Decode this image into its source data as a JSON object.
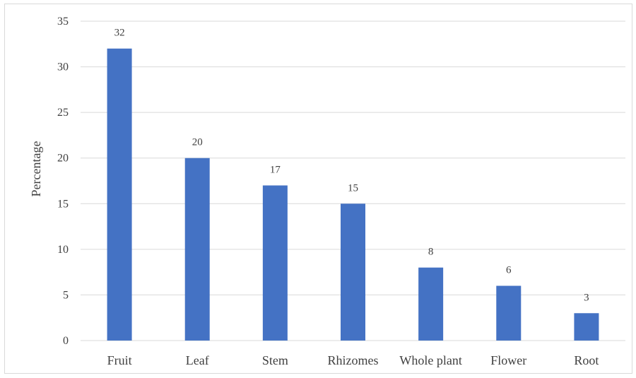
{
  "chart_data": {
    "type": "bar",
    "categories": [
      "Fruit",
      "Leaf",
      "Stem",
      "Rhizomes",
      "Whole plant",
      "Flower",
      "Root"
    ],
    "values": [
      32,
      20,
      17,
      15,
      8,
      6,
      3
    ],
    "title": "",
    "xlabel": "",
    "ylabel": "Percentage",
    "ylim": [
      0,
      35
    ],
    "yticks": [
      0,
      5,
      10,
      15,
      20,
      25,
      30,
      35
    ],
    "grid": true,
    "legend": "none",
    "data_labels": true,
    "bar_color": "#4472c4",
    "grid_color": "#d9d9d9"
  }
}
